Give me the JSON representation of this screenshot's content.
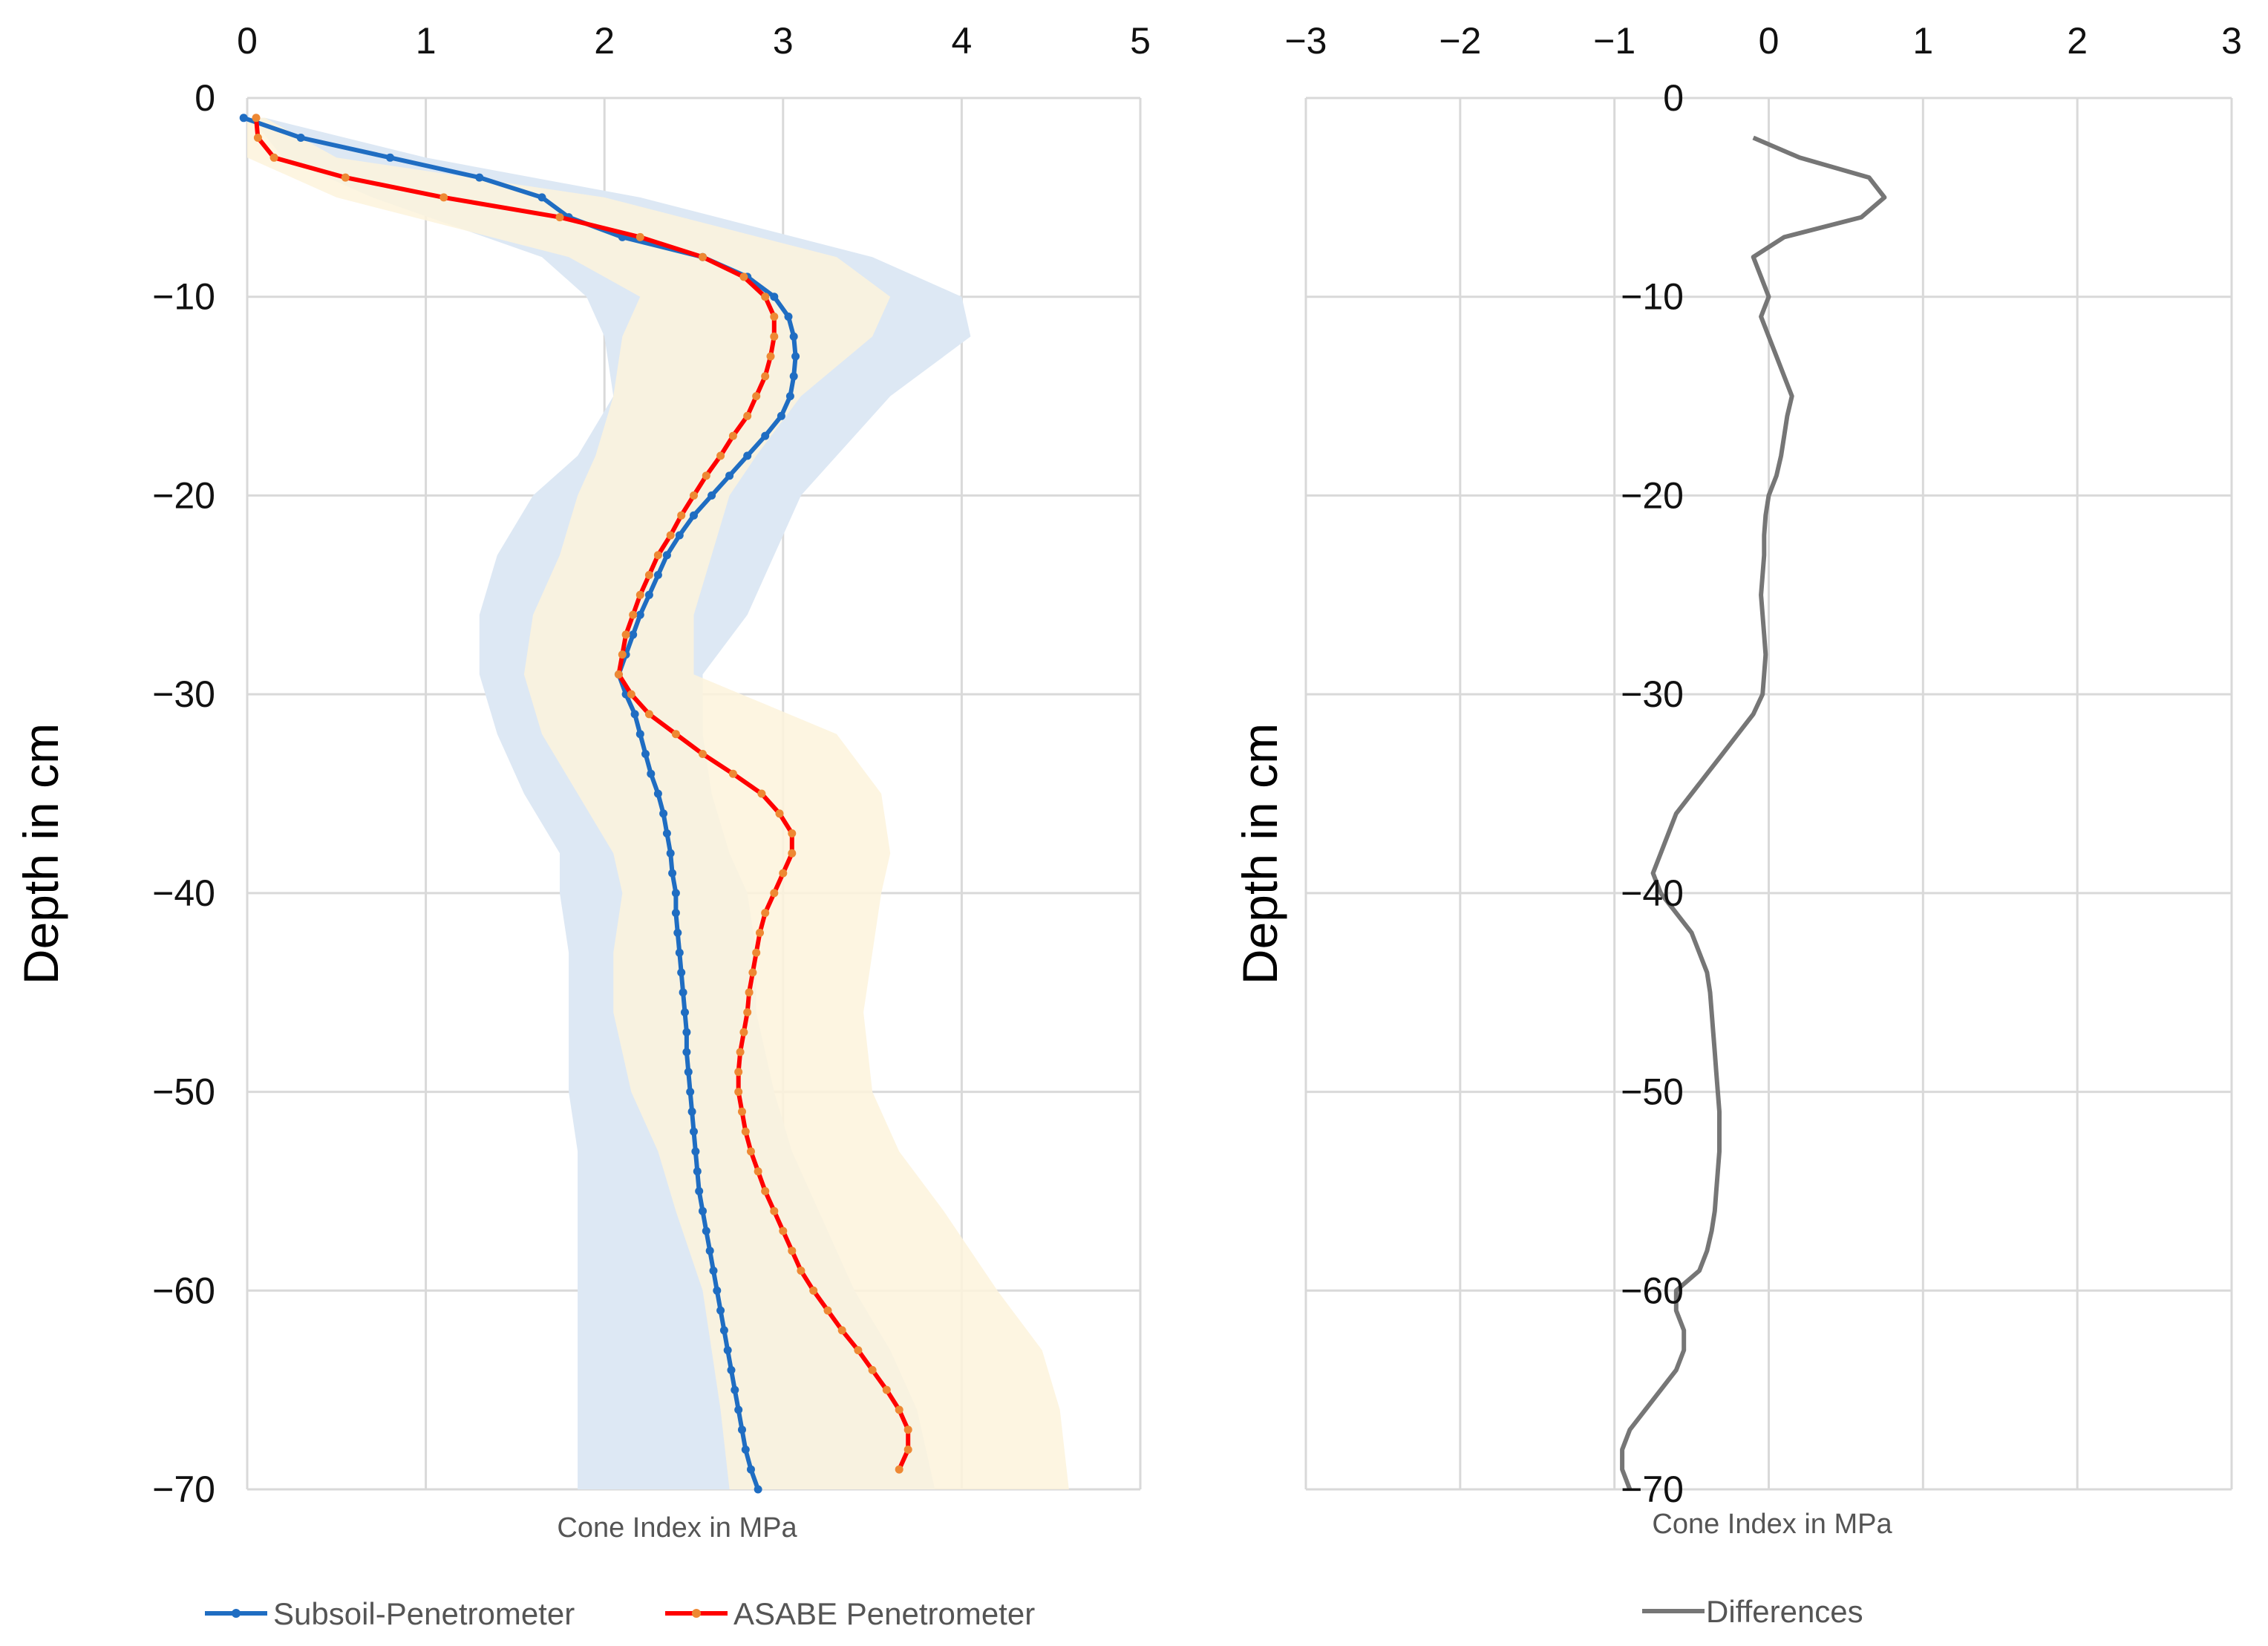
{
  "chart_data": [
    {
      "type": "line",
      "xlabel": "Cone Index in MPa",
      "ylabel": "Depth in cm",
      "xlim": [
        0,
        5
      ],
      "ylim": [
        -70,
        0
      ],
      "x_ticks": [
        "0",
        "1",
        "2",
        "3",
        "4",
        "5"
      ],
      "y_ticks": [
        "0",
        "−10",
        "−20",
        "−30",
        "−40",
        "−50",
        "−60",
        "−70"
      ],
      "legend": "bottom",
      "bands": [
        {
          "name": "Subsoil-Penetrometer range",
          "color": "#dde8f4",
          "depth": [
            -1,
            -3,
            -5,
            -8,
            -10,
            -12,
            -15,
            -18,
            -20,
            -23,
            -26,
            -29,
            -32,
            -35,
            -38,
            -40,
            -43,
            -46,
            -50,
            -53,
            -56,
            -60,
            -63,
            -66,
            -70
          ],
          "min": [
            0.02,
            0.2,
            0.7,
            1.65,
            1.9,
            2.0,
            2.05,
            1.85,
            1.6,
            1.4,
            1.3,
            1.3,
            1.4,
            1.55,
            1.75,
            1.75,
            1.8,
            1.8,
            1.8,
            1.85,
            1.85,
            1.85,
            1.85,
            1.85,
            1.85
          ],
          "max": [
            0.1,
            1.0,
            2.2,
            3.5,
            4.0,
            4.05,
            3.6,
            3.3,
            3.1,
            2.95,
            2.8,
            2.55,
            2.55,
            2.6,
            2.7,
            2.8,
            2.85,
            2.85,
            2.95,
            3.05,
            3.2,
            3.4,
            3.6,
            3.75,
            3.85
          ]
        },
        {
          "name": "ASABE Penetrometer range",
          "color": "#fdf3dc",
          "depth": [
            -1,
            -3,
            -5,
            -8,
            -10,
            -12,
            -15,
            -18,
            -20,
            -23,
            -26,
            -29,
            -32,
            -35,
            -38,
            -40,
            -43,
            -46,
            -50,
            -53,
            -56,
            -60,
            -63,
            -66,
            -70
          ],
          "min": [
            0.0,
            0.0,
            0.5,
            1.8,
            2.2,
            2.1,
            2.05,
            1.95,
            1.85,
            1.75,
            1.6,
            1.55,
            1.65,
            1.85,
            2.05,
            2.1,
            2.05,
            2.05,
            2.15,
            2.3,
            2.4,
            2.55,
            2.6,
            2.65,
            2.7
          ],
          "max": [
            0.1,
            0.5,
            2.0,
            3.3,
            3.6,
            3.5,
            3.1,
            2.85,
            2.7,
            2.6,
            2.5,
            2.5,
            3.3,
            3.55,
            3.6,
            3.55,
            3.5,
            3.45,
            3.5,
            3.65,
            3.9,
            4.2,
            4.45,
            4.55,
            4.6
          ]
        }
      ],
      "series": [
        {
          "name": "Subsoil-Penetrometer",
          "color": "#1f6dc2",
          "marker_color": "#1f6dc2",
          "depth": [
            -1,
            -2,
            -3,
            -4,
            -5,
            -6,
            -7,
            -8,
            -9,
            -10,
            -11,
            -12,
            -13,
            -14,
            -15,
            -16,
            -17,
            -18,
            -19,
            -20,
            -21,
            -22,
            -23,
            -24,
            -25,
            -26,
            -27,
            -28,
            -29,
            -30,
            -31,
            -32,
            -33,
            -34,
            -35,
            -36,
            -37,
            -38,
            -39,
            -40,
            -41,
            -42,
            -43,
            -44,
            -45,
            -46,
            -47,
            -48,
            -49,
            -50,
            -51,
            -52,
            -53,
            -54,
            -55,
            -56,
            -57,
            -58,
            -59,
            -60,
            -61,
            -62,
            -63,
            -64,
            -65,
            -66,
            -67,
            -68,
            -69,
            -70
          ],
          "cone_index": [
            -0.02,
            0.3,
            0.8,
            1.3,
            1.65,
            1.8,
            2.1,
            2.55,
            2.8,
            2.95,
            3.03,
            3.06,
            3.07,
            3.06,
            3.04,
            2.99,
            2.9,
            2.8,
            2.7,
            2.6,
            2.5,
            2.42,
            2.35,
            2.3,
            2.25,
            2.2,
            2.16,
            2.12,
            2.08,
            2.12,
            2.17,
            2.2,
            2.23,
            2.26,
            2.3,
            2.33,
            2.35,
            2.37,
            2.38,
            2.4,
            2.4,
            2.41,
            2.42,
            2.43,
            2.44,
            2.45,
            2.46,
            2.46,
            2.47,
            2.48,
            2.49,
            2.5,
            2.51,
            2.52,
            2.53,
            2.55,
            2.57,
            2.59,
            2.61,
            2.63,
            2.65,
            2.67,
            2.69,
            2.71,
            2.73,
            2.75,
            2.77,
            2.79,
            2.82,
            2.86
          ]
        },
        {
          "name": "ASABE Penetrometer",
          "color": "#ff0000",
          "marker_color": "#ee8833",
          "depth": [
            -1,
            -2,
            -3,
            -4,
            -5,
            -6,
            -7,
            -8,
            -9,
            -10,
            -11,
            -12,
            -13,
            -14,
            -15,
            -16,
            -17,
            -18,
            -19,
            -20,
            -21,
            -22,
            -23,
            -24,
            -25,
            -26,
            -27,
            -28,
            -29,
            -30,
            -31,
            -32,
            -33,
            -34,
            -35,
            -36,
            -37,
            -38,
            -39,
            -40,
            -41,
            -42,
            -43,
            -44,
            -45,
            -46,
            -47,
            -48,
            -49,
            -50,
            -51,
            -52,
            -53,
            -54,
            -55,
            -56,
            -57,
            -58,
            -59,
            -60,
            -61,
            -62,
            -63,
            -64,
            -65,
            -66,
            -67,
            -68,
            -69
          ],
          "cone_index": [
            0.05,
            0.06,
            0.15,
            0.55,
            1.1,
            1.75,
            2.2,
            2.55,
            2.78,
            2.9,
            2.95,
            2.95,
            2.93,
            2.9,
            2.85,
            2.8,
            2.72,
            2.65,
            2.57,
            2.5,
            2.43,
            2.37,
            2.3,
            2.25,
            2.2,
            2.16,
            2.12,
            2.1,
            2.08,
            2.15,
            2.25,
            2.4,
            2.55,
            2.72,
            2.88,
            2.98,
            3.05,
            3.05,
            3.0,
            2.95,
            2.9,
            2.87,
            2.85,
            2.83,
            2.81,
            2.8,
            2.78,
            2.76,
            2.75,
            2.75,
            2.77,
            2.79,
            2.82,
            2.86,
            2.9,
            2.95,
            3.0,
            3.05,
            3.1,
            3.17,
            3.25,
            3.33,
            3.42,
            3.5,
            3.58,
            3.65,
            3.7,
            3.7,
            3.65
          ]
        }
      ]
    },
    {
      "type": "line",
      "xlabel": "Cone Index in MPa",
      "ylabel": "Depth in cm",
      "xlim": [
        -3,
        3
      ],
      "ylim": [
        -70,
        0
      ],
      "x_ticks": [
        "−3",
        "−2",
        "−1",
        "0",
        "1",
        "2",
        "3"
      ],
      "y_ticks": [
        "0",
        "−10",
        "−20",
        "−30",
        "−40",
        "−50",
        "−60",
        "−70"
      ],
      "legend": "bottom",
      "series": [
        {
          "name": "Differences",
          "color": "#767676",
          "depth": [
            -2,
            -3,
            -4,
            -5,
            -6,
            -7,
            -8,
            -9,
            -10,
            -11,
            -12,
            -13,
            -14,
            -15,
            -16,
            -17,
            -18,
            -19,
            -20,
            -21,
            -22,
            -23,
            -24,
            -25,
            -26,
            -27,
            -28,
            -29,
            -30,
            -31,
            -32,
            -33,
            -34,
            -35,
            -36,
            -37,
            -38,
            -39,
            -40,
            -41,
            -42,
            -43,
            -44,
            -45,
            -46,
            -47,
            -48,
            -49,
            -50,
            -51,
            -52,
            -53,
            -54,
            -55,
            -56,
            -57,
            -58,
            -59,
            -60,
            -61,
            -62,
            -63,
            -64,
            -65,
            -66,
            -67,
            -68,
            -69,
            -70
          ],
          "cone_index": [
            -0.1,
            0.2,
            0.65,
            0.75,
            0.6,
            0.1,
            -0.1,
            -0.05,
            0.0,
            -0.05,
            0.0,
            0.05,
            0.1,
            0.15,
            0.12,
            0.1,
            0.08,
            0.05,
            0.0,
            -0.02,
            -0.03,
            -0.03,
            -0.04,
            -0.05,
            -0.04,
            -0.03,
            -0.02,
            -0.03,
            -0.04,
            -0.1,
            -0.2,
            -0.3,
            -0.4,
            -0.5,
            -0.6,
            -0.65,
            -0.7,
            -0.75,
            -0.7,
            -0.6,
            -0.5,
            -0.45,
            -0.4,
            -0.38,
            -0.37,
            -0.36,
            -0.35,
            -0.34,
            -0.33,
            -0.32,
            -0.32,
            -0.32,
            -0.33,
            -0.34,
            -0.35,
            -0.37,
            -0.4,
            -0.45,
            -0.6,
            -0.6,
            -0.55,
            -0.55,
            -0.6,
            -0.7,
            -0.8,
            -0.9,
            -0.95,
            -0.95,
            -0.9
          ]
        }
      ]
    }
  ]
}
